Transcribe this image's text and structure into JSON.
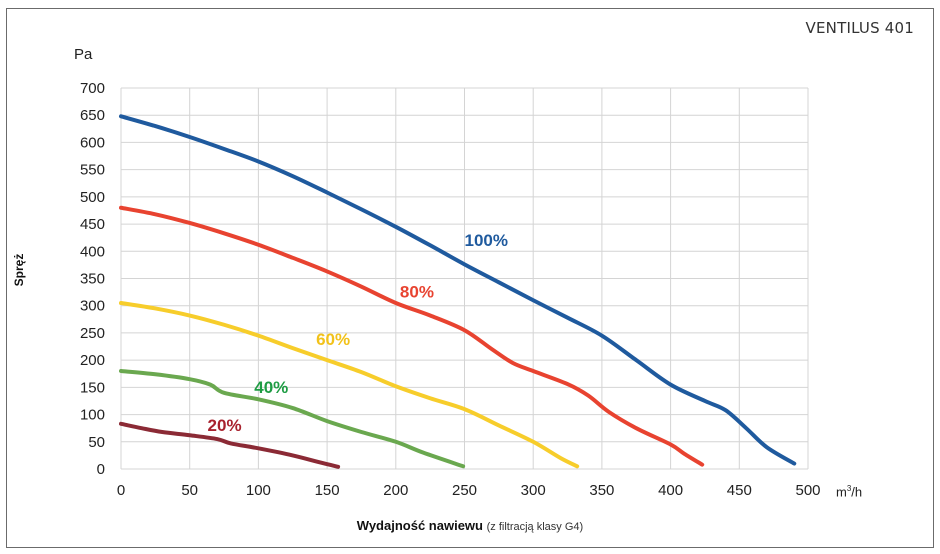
{
  "chart_data": {
    "type": "line",
    "title": "VENTILUS 401",
    "ylabel": "Spręż",
    "yunit": "Pa",
    "xlabel_main": "Wydajność nawiewu",
    "xlabel_note": "(z filtracją klasy G4)",
    "xunit_base": "m",
    "xunit_sup": "3",
    "xunit_tail": "/h",
    "xlim": [
      0,
      500
    ],
    "ylim": [
      0,
      700
    ],
    "xticks": [
      "0",
      "50",
      "100",
      "150",
      "200",
      "250",
      "300",
      "350",
      "400",
      "450",
      "500"
    ],
    "yticks": [
      "0",
      "50",
      "100",
      "150",
      "200",
      "250",
      "300",
      "350",
      "400",
      "450",
      "500",
      "550",
      "600",
      "650",
      "700"
    ],
    "grid": true,
    "series": [
      {
        "name": "100%",
        "color": "#1f5a9e",
        "label_at": [
          250,
          410
        ],
        "points": [
          [
            0,
            648
          ],
          [
            25,
            630
          ],
          [
            50,
            610
          ],
          [
            75,
            588
          ],
          [
            100,
            565
          ],
          [
            125,
            538
          ],
          [
            150,
            508
          ],
          [
            175,
            477
          ],
          [
            200,
            445
          ],
          [
            225,
            411
          ],
          [
            250,
            376
          ],
          [
            275,
            343
          ],
          [
            300,
            310
          ],
          [
            325,
            278
          ],
          [
            350,
            245
          ],
          [
            375,
            200
          ],
          [
            400,
            155
          ],
          [
            425,
            125
          ],
          [
            440,
            108
          ],
          [
            455,
            75
          ],
          [
            470,
            40
          ],
          [
            490,
            10
          ]
        ]
      },
      {
        "name": "80%",
        "color": "#e84330",
        "label_at": [
          203,
          315
        ],
        "points": [
          [
            0,
            480
          ],
          [
            25,
            468
          ],
          [
            50,
            452
          ],
          [
            75,
            433
          ],
          [
            100,
            412
          ],
          [
            125,
            388
          ],
          [
            150,
            363
          ],
          [
            175,
            335
          ],
          [
            200,
            305
          ],
          [
            225,
            282
          ],
          [
            250,
            255
          ],
          [
            270,
            220
          ],
          [
            285,
            195
          ],
          [
            300,
            180
          ],
          [
            325,
            156
          ],
          [
            340,
            135
          ],
          [
            355,
            105
          ],
          [
            375,
            75
          ],
          [
            400,
            45
          ],
          [
            410,
            28
          ],
          [
            423,
            8
          ]
        ]
      },
      {
        "name": "60%",
        "color": "#f7cd2b",
        "label_at": [
          142,
          228
        ],
        "points": [
          [
            0,
            305
          ],
          [
            25,
            295
          ],
          [
            50,
            282
          ],
          [
            75,
            265
          ],
          [
            100,
            245
          ],
          [
            125,
            222
          ],
          [
            150,
            200
          ],
          [
            175,
            178
          ],
          [
            200,
            152
          ],
          [
            225,
            130
          ],
          [
            250,
            110
          ],
          [
            275,
            80
          ],
          [
            300,
            50
          ],
          [
            320,
            20
          ],
          [
            332,
            5
          ]
        ]
      },
      {
        "name": "40%",
        "color": "#6aa84f",
        "label_at": [
          97,
          140
        ],
        "points": [
          [
            0,
            180
          ],
          [
            25,
            174
          ],
          [
            50,
            165
          ],
          [
            65,
            155
          ],
          [
            75,
            140
          ],
          [
            100,
            128
          ],
          [
            125,
            112
          ],
          [
            150,
            88
          ],
          [
            175,
            68
          ],
          [
            200,
            50
          ],
          [
            220,
            30
          ],
          [
            249,
            5
          ]
        ]
      },
      {
        "name": "20%",
        "color": "#8b2a35",
        "label_at": [
          63,
          70
        ],
        "points": [
          [
            0,
            83
          ],
          [
            15,
            75
          ],
          [
            30,
            68
          ],
          [
            50,
            62
          ],
          [
            70,
            55
          ],
          [
            80,
            47
          ],
          [
            100,
            38
          ],
          [
            125,
            25
          ],
          [
            145,
            12
          ],
          [
            158,
            4
          ]
        ]
      }
    ],
    "series_label_colors": [
      "#1f5a9e",
      "#e84330",
      "#f2c21a",
      "#1e9c43",
      "#a8222e"
    ]
  }
}
